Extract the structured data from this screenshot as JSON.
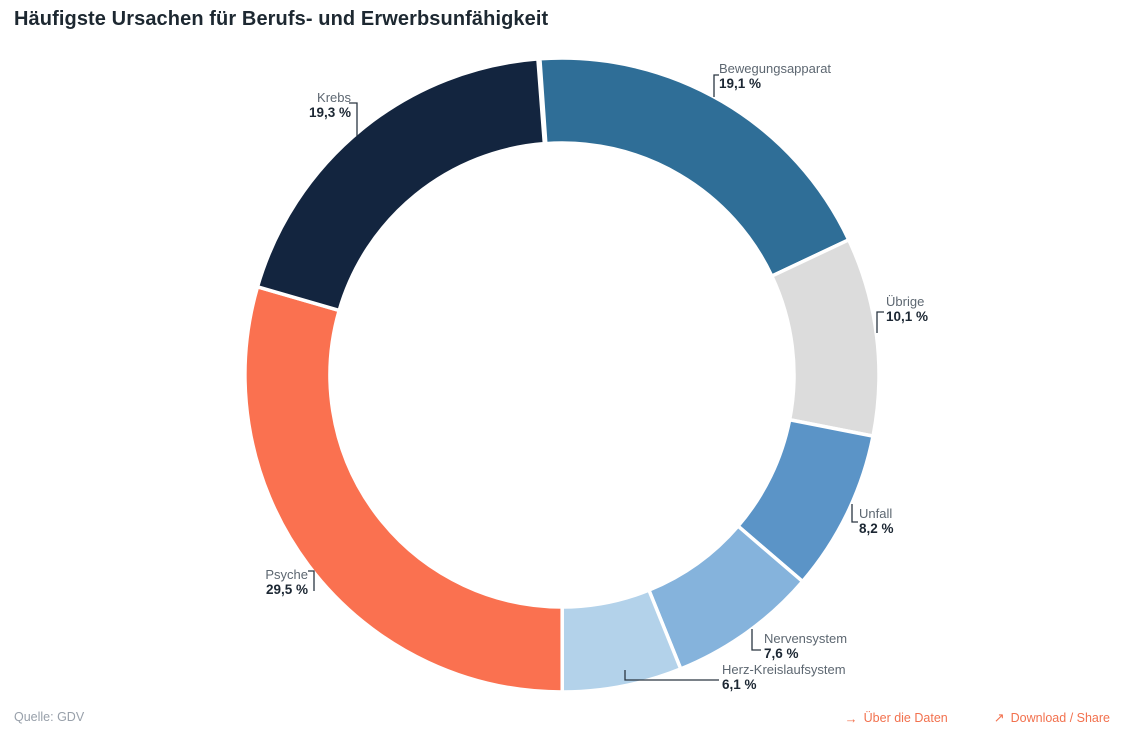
{
  "title": "Häufigste Ursachen für Berufs- und Erwerbsunfähigkeit",
  "source": {
    "label": "Quelle: GDV"
  },
  "footer": {
    "links": [
      {
        "icon": "→",
        "label": "Über die Daten"
      },
      {
        "icon": "↗",
        "label": "Download / Share"
      }
    ],
    "link_color": "#F2714E"
  },
  "chart_data": {
    "type": "pie",
    "subtype": "donut",
    "title": "Häufigste Ursachen für Berufs- und Erwerbsunfähigkeit",
    "unit": "%",
    "decimal_separator": ",",
    "legend": "none",
    "label_style": "callout",
    "start_angle_deg": -4,
    "slices": [
      {
        "label": "Bewegungsapparat",
        "value": 19.1,
        "value_label": "19,1 %",
        "color": "#2F6E97"
      },
      {
        "label": "Übrige",
        "value": 10.1,
        "value_label": "10,1 %",
        "color": "#DCDCDC"
      },
      {
        "label": "Unfall",
        "value": 8.2,
        "value_label": "8,2 %",
        "color": "#5B94C7"
      },
      {
        "label": "Nervensystem",
        "value": 7.6,
        "value_label": "7,6 %",
        "color": "#85B3DC"
      },
      {
        "label": "Herz-Kreislaufsystem",
        "value": 6.1,
        "value_label": "6,1 %",
        "color": "#B3D2EA"
      },
      {
        "label": "Psyche",
        "value": 29.5,
        "value_label": "29,5 %",
        "color": "#FA7150"
      },
      {
        "label": "Krebs",
        "value": 19.3,
        "value_label": "19,3 %",
        "color": "#13253F"
      }
    ]
  }
}
